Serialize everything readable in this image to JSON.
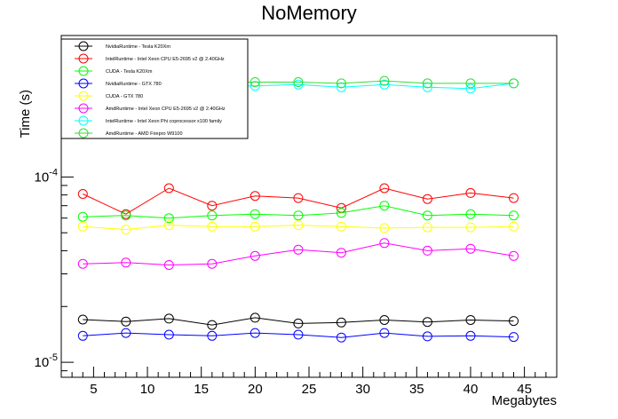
{
  "chart_data": {
    "type": "line",
    "title": "NoMemory",
    "xlabel": "Megabytes",
    "ylabel": "Time (s)",
    "log_y": true,
    "xlim": [
      2,
      48
    ],
    "ylim": [
      8.3e-06,
      0.00058
    ],
    "x_ticks": [
      "5",
      "10",
      "15",
      "20",
      "25",
      "30",
      "35",
      "40",
      "45"
    ],
    "x": [
      4,
      8,
      12,
      16,
      20,
      24,
      28,
      32,
      36,
      40,
      44
    ],
    "legend_position": "top-left",
    "series": [
      {
        "name": "NvidiaRuntime - Tesla K20Xm",
        "color": "#000000",
        "values": [
          1.7e-05,
          1.66e-05,
          1.72e-05,
          1.59e-05,
          1.74e-05,
          1.62e-05,
          1.64e-05,
          1.69e-05,
          1.65e-05,
          1.69e-05,
          1.67e-05
        ]
      },
      {
        "name": "IntelRuntime - Intel Xeon CPU E5-2695 v2 @ 2.40GHz",
        "color": "#ff0000",
        "values": [
          8.1e-05,
          6.3e-05,
          8.7e-05,
          7e-05,
          7.9e-05,
          7.7e-05,
          6.8e-05,
          8.7e-05,
          7.6e-05,
          8.2e-05,
          7.7e-05
        ]
      },
      {
        "name": "CUDA - Tesla K20Xm",
        "color": "#00ff00",
        "values": [
          6.1e-05,
          6.2e-05,
          6e-05,
          6.2e-05,
          6.3e-05,
          6.2e-05,
          6.4e-05,
          7e-05,
          6.2e-05,
          6.3e-05,
          6.2e-05
        ]
      },
      {
        "name": "NvidiaRuntime - GTX 780",
        "color": "#0000ff",
        "values": [
          1.39e-05,
          1.44e-05,
          1.41e-05,
          1.39e-05,
          1.44e-05,
          1.41e-05,
          1.36e-05,
          1.44e-05,
          1.38e-05,
          1.39e-05,
          1.37e-05
        ]
      },
      {
        "name": "CUDA - GTX 780",
        "color": "#ffff00",
        "values": [
          5.4e-05,
          5.2e-05,
          5.5e-05,
          5.4e-05,
          5.4e-05,
          5.5e-05,
          5.4e-05,
          5.3e-05,
          5.35e-05,
          5.35e-05,
          5.4e-05
        ]
      },
      {
        "name": "AmdRuntime - Intel Xeon CPU E5-2695 v2 @ 2.40GHz",
        "color": "#ff00ff",
        "values": [
          3.4e-05,
          3.45e-05,
          3.35e-05,
          3.4e-05,
          3.75e-05,
          4.05e-05,
          3.9e-05,
          4.4e-05,
          4e-05,
          4.1e-05,
          3.75e-05
        ]
      },
      {
        "name": "IntelRuntime - Intel Xeon Phi coprocessor x100 family",
        "color": "#00ffff",
        "values": [
          0.00031,
          0.00031,
          0.00031,
          0.00031,
          0.00031,
          0.000315,
          0.000305,
          0.000315,
          0.000305,
          0.0003,
          0.00032
        ]
      },
      {
        "name": "AmdRuntime - AMD Firepro W9100",
        "color": "#33dd33",
        "values": [
          0.00032,
          0.00032,
          0.00032,
          0.000325,
          0.000325,
          0.000325,
          0.00032,
          0.00033,
          0.00032,
          0.00032,
          0.00032
        ]
      }
    ]
  }
}
